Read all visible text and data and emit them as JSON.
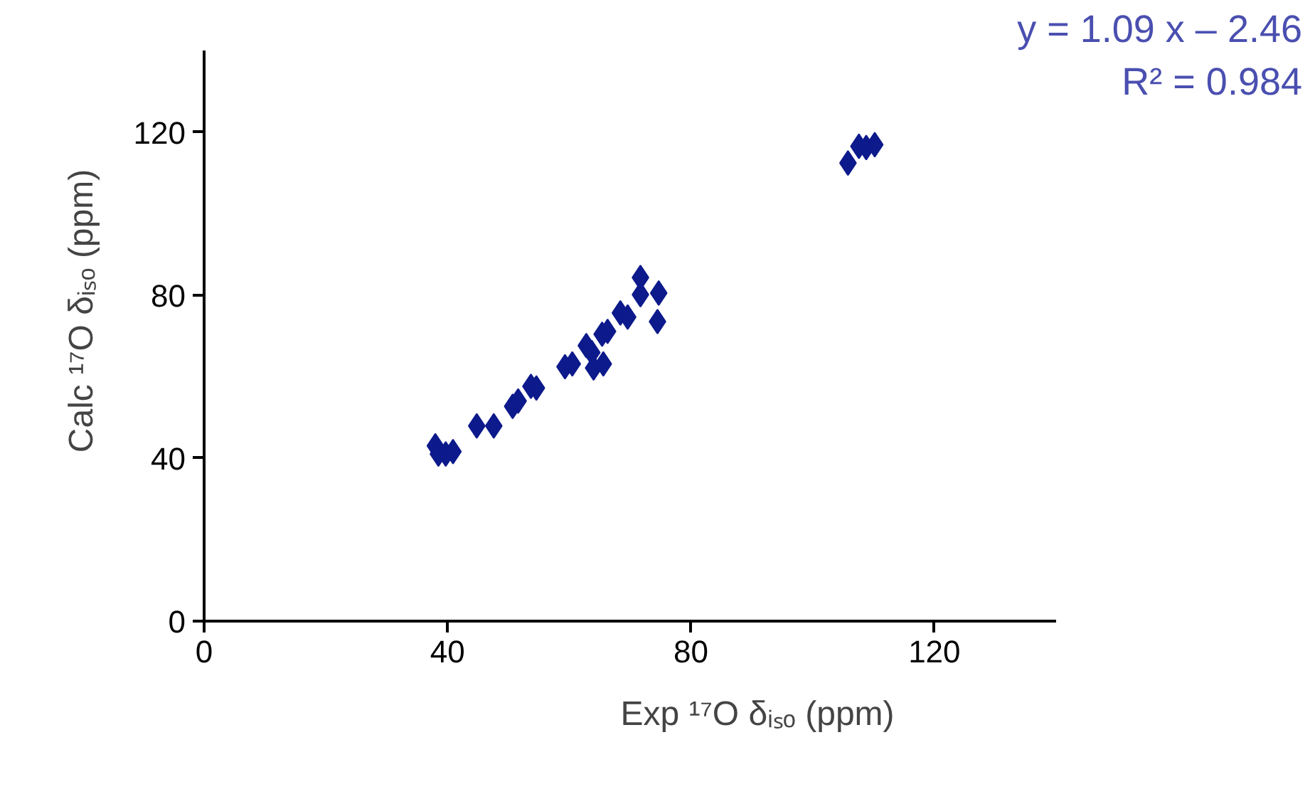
{
  "chart_data": {
    "type": "scatter",
    "xlabel": "Exp ¹⁷O δᵢₛₒ (ppm)",
    "ylabel": "Calc ¹⁷O δᵢₛₒ (ppm)",
    "annotations": [
      "y = 1.09 x – 2.46",
      "R² = 0.984"
    ],
    "x": [
      38,
      38.5,
      39.7,
      40.9,
      44.8,
      47.6,
      50.7,
      51.6,
      53.7,
      54.6,
      59.3,
      60.5,
      62.8,
      63.7,
      64,
      65.4,
      66.3,
      65.6,
      68.4,
      69.6,
      71.7,
      71.7,
      74.7,
      74.5,
      105.8,
      107.6,
      108.8,
      110.2
    ],
    "series": [
      {
        "color": "#0d1a8c",
        "values": [
          43,
          41,
          41,
          41.6,
          47.9,
          47.9,
          52.7,
          54,
          57.6,
          57.2,
          62.4,
          63.1,
          67.6,
          65.9,
          62.1,
          70.4,
          71.1,
          63.1,
          75.6,
          74.6,
          84.3,
          80.1,
          80.5,
          73.5,
          112.4,
          116.5,
          116.2,
          116.9
        ]
      }
    ],
    "marker": "diamond",
    "grid": false,
    "xlim": [
      0,
      140
    ],
    "ylim": [
      0,
      140
    ],
    "xticks": [
      0,
      40,
      80,
      120
    ],
    "yticks": [
      0,
      40,
      80,
      120
    ]
  }
}
